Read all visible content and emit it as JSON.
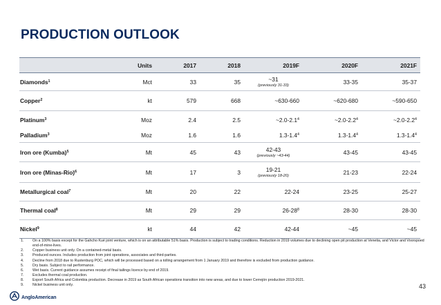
{
  "title": "PRODUCTION OUTLOOK",
  "columns": [
    "",
    "Units",
    "2017",
    "2018",
    "2019F",
    "2020F",
    "2021F"
  ],
  "rows": [
    {
      "name": "Diamonds",
      "sup": "1",
      "units": "Mct",
      "y2017": "33",
      "y2018": "35",
      "y2019": "~31",
      "y2019_note": "(previously 31-33)",
      "y2020": "33-35",
      "y2021": "35-37"
    },
    {
      "name": "Copper",
      "sup": "2",
      "units": "kt",
      "y2017": "579",
      "y2018": "668",
      "y2019": "~630-660",
      "y2019_note": "",
      "y2020": "~620-680",
      "y2021": "~590-650"
    },
    {
      "name": "Platinum",
      "sup": "3",
      "units": "Moz",
      "y2017": "2.4",
      "y2018": "2.5",
      "y2019": "~2.0-2.1",
      "y2019_sup": "4",
      "y2019_note": "",
      "y2020": "~2.0-2.2",
      "y2020_sup": "4",
      "y2021": "~2.0-2.2",
      "y2021_sup": "4"
    },
    {
      "name": "Palladium",
      "sup": "3",
      "units": "Moz",
      "y2017": "1.6",
      "y2018": "1.6",
      "y2019": "1.3-1.4",
      "y2019_sup": "4",
      "y2019_note": "",
      "y2020": "1.3-1.4",
      "y2020_sup": "4",
      "y2021": "1.3-1.4",
      "y2021_sup": "4"
    },
    {
      "name": "Iron ore (Kumba)",
      "sup": "5",
      "units": "Mt",
      "y2017": "45",
      "y2018": "43",
      "y2019": "42-43",
      "y2019_note": "(previously ~43-44)",
      "y2020": "43-45",
      "y2021": "43-45"
    },
    {
      "name": "Iron ore (Minas-Rio)",
      "sup": "6",
      "units": "Mt",
      "y2017": "17",
      "y2018": "3",
      "y2019": "19-21",
      "y2019_note": "(previously 18-20)",
      "y2020": "21-23",
      "y2021": "22-24"
    },
    {
      "name": "Metallurgical coal",
      "sup": "7",
      "units": "Mt",
      "y2017": "20",
      "y2018": "22",
      "y2019": "22-24",
      "y2019_note": "",
      "y2020": "23-25",
      "y2021": "25-27"
    },
    {
      "name": "Thermal coal",
      "sup": "8",
      "units": "Mt",
      "y2017": "29",
      "y2018": "29",
      "y2019": "26-28",
      "y2019_sup": "8",
      "y2019_note": "",
      "y2020": "28-30",
      "y2021": "28-30"
    },
    {
      "name": "Nickel",
      "sup": "9",
      "units": "kt",
      "y2017": "44",
      "y2018": "42",
      "y2019": "42-44",
      "y2019_note": "",
      "y2020": "~45",
      "y2021": "~45"
    }
  ],
  "footnotes": [
    {
      "num": "1.",
      "text": "On a 100% basis except for the Gahcho Kué joint venture, which is on an attributable 51% basis. Production is subject to trading conditions. Reduction in 2019 volumes due to declining open pit production at Venetia, and Victor and Voorspoed end-of-mine-lives."
    },
    {
      "num": "2.",
      "text": "Copper business unit only. On a contained-metal basis."
    },
    {
      "num": "3.",
      "text": "Produced ounces. Includes production from joint operations, associates and third-parties."
    },
    {
      "num": "4.",
      "text": "Decline from 2018 due to Rustenburg POC, which will be processed based on a tolling arrangement from 1 January 2019 and therefore is excluded from production guidance."
    },
    {
      "num": "5.",
      "text": "Dry basis. Subject to rail performance."
    },
    {
      "num": "6.",
      "text": "Wet basis. Current guidance assumes receipt of final tailings licence by end of 2019."
    },
    {
      "num": "7.",
      "text": "Excludes thermal coal production."
    },
    {
      "num": "8.",
      "text": "Export South Africa and Colombia production. Decrease in 2019 as South African operations transition into new areas, and due to lower Cerrejón production 2019-2021."
    },
    {
      "num": "9.",
      "text": "Nickel business unit only."
    }
  ],
  "page_number": "43",
  "logo": {
    "text": "AngloAmerican",
    "color": "#0a2a5e"
  }
}
